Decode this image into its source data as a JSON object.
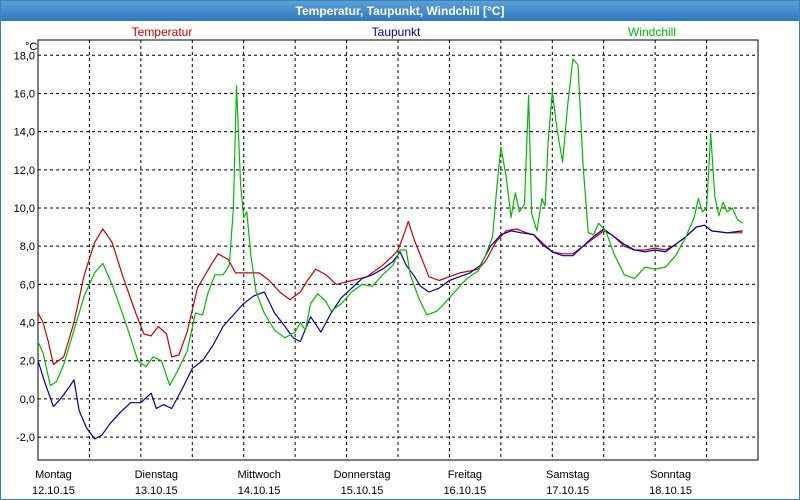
{
  "window": {
    "title": "Temperatur, Taupunkt, Windchill [°C]"
  },
  "chart_data": {
    "type": "line",
    "title": "Temperatur, Taupunkt, Windchill [°C]",
    "ylabel": "°C",
    "ylim": [
      -3.2,
      18.8
    ],
    "yticks": [
      18,
      16,
      14,
      12,
      10,
      8,
      6,
      4,
      2,
      0,
      -2
    ],
    "ytick_labels": [
      "18,0",
      "16,0",
      "14,0",
      "12,0",
      "10,0",
      "8,0",
      "6,0",
      "4,0",
      "2,0",
      "0,0",
      "-2,0"
    ],
    "xlim": [
      0,
      7.0
    ],
    "x_grid_interval": 0.5,
    "grid": true,
    "days": [
      {
        "weekday": "Montag",
        "date": "12.10.15"
      },
      {
        "weekday": "Dienstag",
        "date": "13.10.15"
      },
      {
        "weekday": "Mittwoch",
        "date": "14.10.15"
      },
      {
        "weekday": "Donnerstag",
        "date": "15.10.15"
      },
      {
        "weekday": "Freitag",
        "date": "16.10.15"
      },
      {
        "weekday": "Samstag",
        "date": "17.10.15"
      },
      {
        "weekday": "Sonntag",
        "date": "18.10.15"
      }
    ],
    "series": [
      {
        "name": "Temperatur",
        "color": "#cc0000",
        "points": [
          [
            0,
            4.5
          ],
          [
            0.05,
            4.0
          ],
          [
            0.1,
            3.0
          ],
          [
            0.15,
            1.8
          ],
          [
            0.25,
            2.2
          ],
          [
            0.35,
            4.0
          ],
          [
            0.45,
            6.5
          ],
          [
            0.55,
            8.2
          ],
          [
            0.63,
            8.9
          ],
          [
            0.72,
            8.2
          ],
          [
            0.82,
            6.5
          ],
          [
            0.95,
            4.5
          ],
          [
            1.03,
            3.4
          ],
          [
            1.1,
            3.3
          ],
          [
            1.17,
            3.8
          ],
          [
            1.25,
            3.4
          ],
          [
            1.3,
            2.2
          ],
          [
            1.37,
            2.3
          ],
          [
            1.45,
            3.5
          ],
          [
            1.55,
            5.8
          ],
          [
            1.68,
            7.0
          ],
          [
            1.75,
            7.6
          ],
          [
            1.85,
            7.3
          ],
          [
            1.92,
            6.6
          ],
          [
            2.0,
            6.6
          ],
          [
            2.15,
            6.6
          ],
          [
            2.25,
            6.2
          ],
          [
            2.35,
            5.6
          ],
          [
            2.45,
            5.2
          ],
          [
            2.55,
            5.6
          ],
          [
            2.62,
            6.2
          ],
          [
            2.7,
            6.8
          ],
          [
            2.8,
            6.5
          ],
          [
            2.9,
            6.0
          ],
          [
            3.05,
            6.2
          ],
          [
            3.2,
            6.4
          ],
          [
            3.35,
            7.0
          ],
          [
            3.45,
            7.5
          ],
          [
            3.5,
            7.8
          ],
          [
            3.55,
            8.5
          ],
          [
            3.6,
            9.3
          ],
          [
            3.66,
            8.3
          ],
          [
            3.72,
            7.5
          ],
          [
            3.8,
            6.4
          ],
          [
            3.9,
            6.2
          ],
          [
            4.0,
            6.4
          ],
          [
            4.1,
            6.6
          ],
          [
            4.2,
            6.7
          ],
          [
            4.28,
            6.8
          ],
          [
            4.35,
            7.2
          ],
          [
            4.45,
            8.2
          ],
          [
            4.55,
            8.8
          ],
          [
            4.65,
            8.9
          ],
          [
            4.75,
            8.7
          ],
          [
            4.82,
            8.6
          ],
          [
            4.9,
            8.2
          ],
          [
            5.0,
            7.7
          ],
          [
            5.1,
            7.6
          ],
          [
            5.2,
            7.6
          ],
          [
            5.3,
            8.0
          ],
          [
            5.4,
            8.4
          ],
          [
            5.5,
            8.8
          ],
          [
            5.58,
            8.6
          ],
          [
            5.7,
            8.0
          ],
          [
            5.8,
            7.8
          ],
          [
            5.9,
            7.8
          ],
          [
            6.0,
            7.9
          ],
          [
            6.1,
            7.8
          ],
          [
            6.2,
            8.1
          ],
          [
            6.3,
            8.5
          ],
          [
            6.4,
            9.0
          ],
          [
            6.48,
            9.1
          ],
          [
            6.55,
            8.8
          ],
          [
            6.7,
            8.7
          ],
          [
            6.85,
            8.7
          ]
        ]
      },
      {
        "name": "Taupunkt",
        "color": "#0000aa",
        "points": [
          [
            0,
            2.0
          ],
          [
            0.07,
            0.8
          ],
          [
            0.15,
            -0.4
          ],
          [
            0.22,
            0.0
          ],
          [
            0.3,
            0.6
          ],
          [
            0.35,
            1.0
          ],
          [
            0.4,
            -0.6
          ],
          [
            0.47,
            -1.5
          ],
          [
            0.55,
            -2.1
          ],
          [
            0.62,
            -1.9
          ],
          [
            0.7,
            -1.3
          ],
          [
            0.8,
            -0.7
          ],
          [
            0.9,
            -0.2
          ],
          [
            1.0,
            -0.2
          ],
          [
            1.1,
            0.3
          ],
          [
            1.15,
            -0.5
          ],
          [
            1.22,
            -0.3
          ],
          [
            1.3,
            -0.5
          ],
          [
            1.4,
            0.5
          ],
          [
            1.5,
            1.6
          ],
          [
            1.6,
            2.0
          ],
          [
            1.7,
            2.8
          ],
          [
            1.8,
            3.8
          ],
          [
            1.9,
            4.4
          ],
          [
            2.0,
            5.0
          ],
          [
            2.1,
            5.4
          ],
          [
            2.2,
            5.6
          ],
          [
            2.3,
            4.5
          ],
          [
            2.4,
            3.8
          ],
          [
            2.48,
            3.2
          ],
          [
            2.55,
            3.0
          ],
          [
            2.65,
            4.3
          ],
          [
            2.75,
            3.5
          ],
          [
            2.85,
            4.5
          ],
          [
            2.95,
            5.3
          ],
          [
            3.05,
            5.8
          ],
          [
            3.15,
            6.3
          ],
          [
            3.25,
            6.5
          ],
          [
            3.35,
            6.8
          ],
          [
            3.45,
            7.2
          ],
          [
            3.52,
            7.7
          ],
          [
            3.58,
            7.0
          ],
          [
            3.65,
            6.5
          ],
          [
            3.72,
            5.9
          ],
          [
            3.8,
            5.6
          ],
          [
            3.9,
            5.8
          ],
          [
            4.0,
            6.2
          ],
          [
            4.1,
            6.4
          ],
          [
            4.2,
            6.6
          ],
          [
            4.3,
            7.0
          ],
          [
            4.4,
            8.0
          ],
          [
            4.5,
            8.6
          ],
          [
            4.6,
            8.8
          ],
          [
            4.7,
            8.7
          ],
          [
            4.82,
            8.6
          ],
          [
            4.9,
            8.1
          ],
          [
            5.0,
            7.7
          ],
          [
            5.1,
            7.5
          ],
          [
            5.2,
            7.5
          ],
          [
            5.3,
            8.0
          ],
          [
            5.4,
            8.5
          ],
          [
            5.5,
            8.9
          ],
          [
            5.6,
            8.5
          ],
          [
            5.7,
            8.1
          ],
          [
            5.8,
            7.8
          ],
          [
            5.9,
            7.7
          ],
          [
            6.0,
            7.8
          ],
          [
            6.1,
            7.7
          ],
          [
            6.2,
            8.1
          ],
          [
            6.3,
            8.5
          ],
          [
            6.4,
            9.0
          ],
          [
            6.48,
            9.1
          ],
          [
            6.55,
            8.8
          ],
          [
            6.7,
            8.7
          ],
          [
            6.85,
            8.8
          ]
        ]
      },
      {
        "name": "Windchill",
        "color": "#00bb00",
        "points": [
          [
            0,
            3.0
          ],
          [
            0.05,
            2.4
          ],
          [
            0.12,
            0.7
          ],
          [
            0.18,
            0.9
          ],
          [
            0.25,
            1.8
          ],
          [
            0.35,
            3.6
          ],
          [
            0.45,
            5.4
          ],
          [
            0.55,
            6.6
          ],
          [
            0.63,
            7.1
          ],
          [
            0.72,
            6.0
          ],
          [
            0.82,
            4.5
          ],
          [
            0.9,
            3.2
          ],
          [
            0.97,
            2.0
          ],
          [
            1.05,
            1.7
          ],
          [
            1.12,
            2.2
          ],
          [
            1.2,
            2.0
          ],
          [
            1.28,
            0.7
          ],
          [
            1.35,
            1.4
          ],
          [
            1.45,
            2.5
          ],
          [
            1.53,
            4.5
          ],
          [
            1.6,
            4.4
          ],
          [
            1.65,
            5.5
          ],
          [
            1.72,
            6.5
          ],
          [
            1.8,
            6.5
          ],
          [
            1.86,
            7.0
          ],
          [
            1.9,
            10.0
          ],
          [
            1.93,
            16.4
          ],
          [
            1.97,
            11.2
          ],
          [
            2.0,
            9.5
          ],
          [
            2.03,
            9.8
          ],
          [
            2.07,
            7.5
          ],
          [
            2.12,
            5.6
          ],
          [
            2.2,
            4.5
          ],
          [
            2.3,
            3.6
          ],
          [
            2.4,
            3.2
          ],
          [
            2.5,
            3.5
          ],
          [
            2.55,
            4.0
          ],
          [
            2.6,
            3.6
          ],
          [
            2.65,
            5.0
          ],
          [
            2.72,
            5.5
          ],
          [
            2.8,
            5.1
          ],
          [
            2.85,
            4.6
          ],
          [
            2.95,
            5.0
          ],
          [
            3.05,
            5.6
          ],
          [
            3.15,
            6.0
          ],
          [
            3.25,
            5.9
          ],
          [
            3.35,
            6.5
          ],
          [
            3.45,
            7.0
          ],
          [
            3.52,
            7.8
          ],
          [
            3.58,
            7.8
          ],
          [
            3.62,
            6.5
          ],
          [
            3.7,
            5.3
          ],
          [
            3.78,
            4.4
          ],
          [
            3.88,
            4.6
          ],
          [
            3.95,
            5.0
          ],
          [
            4.05,
            5.6
          ],
          [
            4.15,
            6.2
          ],
          [
            4.22,
            6.5
          ],
          [
            4.28,
            6.7
          ],
          [
            4.35,
            7.5
          ],
          [
            4.42,
            8.5
          ],
          [
            4.46,
            11.0
          ],
          [
            4.5,
            13.2
          ],
          [
            4.55,
            11.7
          ],
          [
            4.6,
            9.5
          ],
          [
            4.64,
            10.8
          ],
          [
            4.68,
            9.8
          ],
          [
            4.73,
            10.2
          ],
          [
            4.77,
            15.9
          ],
          [
            4.8,
            9.7
          ],
          [
            4.85,
            8.8
          ],
          [
            4.9,
            10.5
          ],
          [
            4.93,
            10.1
          ],
          [
            4.96,
            13.5
          ],
          [
            5.0,
            16.1
          ],
          [
            5.05,
            14.0
          ],
          [
            5.1,
            12.4
          ],
          [
            5.15,
            15.4
          ],
          [
            5.2,
            17.8
          ],
          [
            5.25,
            17.5
          ],
          [
            5.3,
            12.2
          ],
          [
            5.35,
            8.7
          ],
          [
            5.4,
            8.6
          ],
          [
            5.45,
            9.2
          ],
          [
            5.52,
            8.8
          ],
          [
            5.6,
            7.6
          ],
          [
            5.7,
            6.5
          ],
          [
            5.8,
            6.3
          ],
          [
            5.9,
            6.9
          ],
          [
            6.0,
            6.8
          ],
          [
            6.1,
            6.9
          ],
          [
            6.2,
            7.5
          ],
          [
            6.3,
            8.5
          ],
          [
            6.38,
            9.5
          ],
          [
            6.42,
            10.5
          ],
          [
            6.46,
            9.8
          ],
          [
            6.5,
            10.0
          ],
          [
            6.54,
            13.9
          ],
          [
            6.58,
            10.6
          ],
          [
            6.62,
            9.6
          ],
          [
            6.66,
            10.3
          ],
          [
            6.7,
            9.8
          ],
          [
            6.75,
            10.0
          ],
          [
            6.8,
            9.4
          ],
          [
            6.85,
            9.2
          ]
        ]
      }
    ]
  }
}
